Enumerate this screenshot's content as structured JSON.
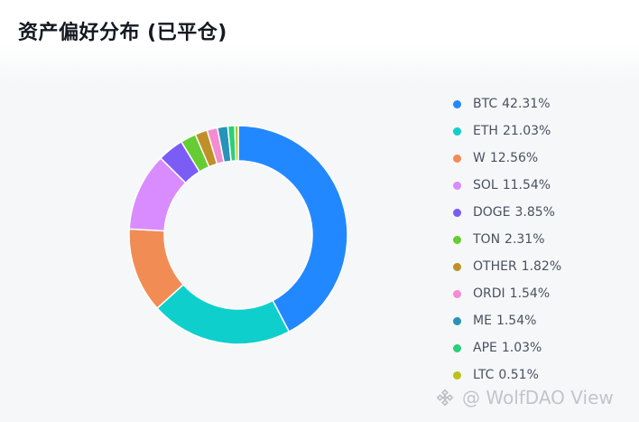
{
  "title": "资产偏好分布 (已平仓)",
  "watermark": "@ WolfDAO View",
  "chart_data": {
    "type": "pie",
    "style": "donut",
    "legend_position": "right",
    "series": [
      {
        "name": "BTC",
        "value": 42.31,
        "label": "42.31%",
        "color": "#2288ff"
      },
      {
        "name": "ETH",
        "value": 21.03,
        "label": "21.03%",
        "color": "#0fcfcc"
      },
      {
        "name": "W",
        "value": 12.56,
        "label": "12.56%",
        "color": "#f28c55"
      },
      {
        "name": "SOL",
        "value": 11.54,
        "label": "11.54%",
        "color": "#d98cff"
      },
      {
        "name": "DOGE",
        "value": 3.85,
        "label": "3.85%",
        "color": "#7b5cf5"
      },
      {
        "name": "TON",
        "value": 2.31,
        "label": "2.31%",
        "color": "#66cc33"
      },
      {
        "name": "OTHER",
        "value": 1.82,
        "label": "1.82%",
        "color": "#c09028"
      },
      {
        "name": "ORDI",
        "value": 1.54,
        "label": "1.54%",
        "color": "#f58bd2"
      },
      {
        "name": "ME",
        "value": 1.54,
        "label": "1.54%",
        "color": "#2893b8"
      },
      {
        "name": "APE",
        "value": 1.03,
        "label": "1.03%",
        "color": "#2bcf78"
      },
      {
        "name": "LTC",
        "value": 0.51,
        "label": "0.51%",
        "color": "#bcc11a"
      }
    ]
  }
}
